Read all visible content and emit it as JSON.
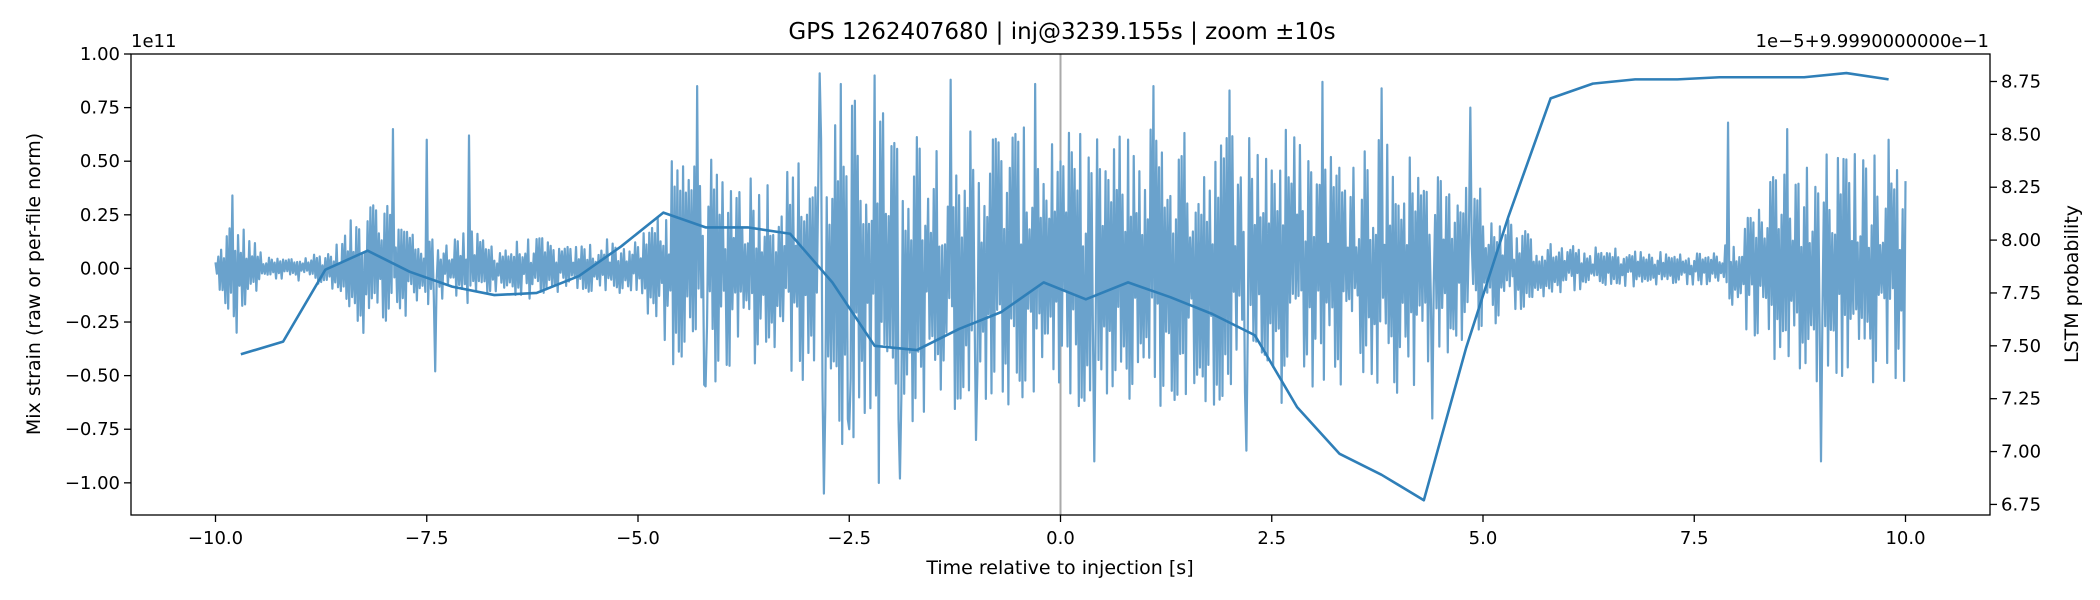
{
  "chart_data": {
    "type": "line",
    "title": "GPS 1262407680 | inj@3239.155s | zoom ±10s",
    "xlabel": "Time relative to injection [s]",
    "ylabel_left": "Mix strain (raw or per-file norm)",
    "ylabel_right": "LSTM probability",
    "left_offset_label": "1e11",
    "right_offset_label": "1e−5+9.9990000000e−1",
    "xlim": [
      -11.0,
      11.0
    ],
    "ylim_left": [
      -1.15,
      1.0
    ],
    "ylim_right": [
      6.7,
      8.88
    ],
    "x_ticks": [
      -10.0,
      -7.5,
      -5.0,
      -2.5,
      0.0,
      2.5,
      5.0,
      7.5,
      10.0
    ],
    "x_tick_labels": [
      "−10.0",
      "−7.5",
      "−5.0",
      "−2.5",
      "0.0",
      "2.5",
      "5.0",
      "7.5",
      "10.0"
    ],
    "y_left_ticks": [
      1.0,
      0.75,
      0.5,
      0.25,
      0.0,
      -0.25,
      -0.5,
      -0.75,
      -1.0
    ],
    "y_left_tick_labels": [
      "1.00",
      "0.75",
      "0.50",
      "0.25",
      "0.00",
      "−0.25",
      "−0.50",
      "−0.75",
      "−1.00"
    ],
    "y_right_ticks": [
      8.75,
      8.5,
      8.25,
      8.0,
      7.75,
      7.5,
      7.25,
      7.0,
      6.75
    ],
    "y_right_tick_labels": [
      "8.75",
      "8.50",
      "8.25",
      "8.00",
      "7.75",
      "7.50",
      "7.25",
      "7.00",
      "6.75"
    ],
    "injection_line_x": 0.0,
    "grid": false,
    "colors": {
      "strain": "#6aa2cc",
      "probability": "#2f7fb8",
      "injection_line": "#aaaaaa",
      "axes": "#000000"
    },
    "strain_envelope": {
      "description_units": "1e11 strain; per-window amplitude envelope of the noisy strain trace",
      "x": [
        -10.0,
        -9.8,
        -9.4,
        -9.0,
        -8.6,
        -8.2,
        -7.8,
        -7.4,
        -7.0,
        -6.6,
        -6.2,
        -5.8,
        -5.4,
        -5.0,
        -4.6,
        -4.2,
        -3.8,
        -3.4,
        -3.0,
        -2.6,
        -2.2,
        -1.8,
        -1.4,
        -1.0,
        -0.6,
        -0.2,
        0.2,
        0.6,
        1.0,
        1.4,
        1.8,
        2.2,
        2.6,
        3.0,
        3.4,
        3.8,
        4.2,
        4.6,
        5.0,
        5.4,
        5.8,
        6.2,
        6.6,
        7.0,
        7.4,
        7.8,
        8.2,
        8.6,
        9.0,
        9.4,
        9.8,
        10.0
      ],
      "amp": [
        0.04,
        0.28,
        0.05,
        0.06,
        0.1,
        0.35,
        0.25,
        0.15,
        0.18,
        0.12,
        0.15,
        0.1,
        0.15,
        0.12,
        0.45,
        0.55,
        0.5,
        0.45,
        0.55,
        0.85,
        0.75,
        0.75,
        0.65,
        0.7,
        0.7,
        0.6,
        0.65,
        0.6,
        0.7,
        0.65,
        0.65,
        0.7,
        0.7,
        0.6,
        0.6,
        0.65,
        0.55,
        0.4,
        0.4,
        0.2,
        0.12,
        0.1,
        0.1,
        0.08,
        0.08,
        0.08,
        0.35,
        0.5,
        0.55,
        0.55,
        0.55,
        0.55
      ],
      "peaks": [
        {
          "x": -9.8,
          "y": 0.34
        },
        {
          "x": -9.75,
          "y": -0.3
        },
        {
          "x": -8.2,
          "y": 0.22
        },
        {
          "x": -7.9,
          "y": 0.65
        },
        {
          "x": -7.9,
          "y": -0.52
        },
        {
          "x": -7.5,
          "y": 0.6
        },
        {
          "x": -7.4,
          "y": -0.48
        },
        {
          "x": -7.0,
          "y": 0.62
        },
        {
          "x": -7.0,
          "y": -0.47
        },
        {
          "x": -4.6,
          "y": 0.5
        },
        {
          "x": -4.3,
          "y": 0.85
        },
        {
          "x": -4.2,
          "y": -0.55
        },
        {
          "x": -2.85,
          "y": 0.91
        },
        {
          "x": -2.8,
          "y": -1.05
        },
        {
          "x": -2.6,
          "y": 0.86
        },
        {
          "x": -2.5,
          "y": -0.75
        },
        {
          "x": -2.2,
          "y": 0.9
        },
        {
          "x": -2.15,
          "y": -1.0
        },
        {
          "x": -1.9,
          "y": -0.98
        },
        {
          "x": -1.3,
          "y": 0.88
        },
        {
          "x": -1.0,
          "y": -0.8
        },
        {
          "x": -0.3,
          "y": 0.86
        },
        {
          "x": 0.0,
          "y": 0.5
        },
        {
          "x": 0.4,
          "y": -0.9
        },
        {
          "x": 1.1,
          "y": 0.85
        },
        {
          "x": 2.0,
          "y": 0.83
        },
        {
          "x": 2.2,
          "y": -0.85
        },
        {
          "x": 3.1,
          "y": 0.87
        },
        {
          "x": 3.8,
          "y": 0.84
        },
        {
          "x": 4.4,
          "y": -0.7
        },
        {
          "x": 4.85,
          "y": 0.75
        },
        {
          "x": 7.9,
          "y": 0.68
        },
        {
          "x": 8.6,
          "y": 0.65
        },
        {
          "x": 9.0,
          "y": -0.9
        },
        {
          "x": 9.8,
          "y": 0.6
        }
      ]
    },
    "probability_series": {
      "x": [
        -9.7,
        -9.2,
        -8.7,
        -8.2,
        -7.7,
        -7.2,
        -6.7,
        -6.2,
        -5.7,
        -5.2,
        -4.7,
        -4.2,
        -3.7,
        -3.2,
        -2.7,
        -2.2,
        -1.7,
        -1.2,
        -0.7,
        -0.2,
        0.3,
        0.8,
        1.3,
        1.8,
        2.3,
        2.8,
        3.3,
        3.8,
        4.3,
        4.8,
        5.3,
        5.8,
        6.3,
        6.8,
        7.3,
        7.8,
        8.3,
        8.8,
        9.3,
        9.8
      ],
      "y": [
        7.46,
        7.52,
        7.86,
        7.95,
        7.85,
        7.78,
        7.74,
        7.75,
        7.83,
        7.97,
        8.13,
        8.06,
        8.06,
        8.03,
        7.8,
        7.5,
        7.48,
        7.58,
        7.66,
        7.8,
        7.72,
        7.8,
        7.73,
        7.65,
        7.55,
        7.21,
        6.99,
        6.89,
        6.77,
        7.49,
        8.11,
        8.67,
        8.74,
        8.76,
        8.76,
        8.77,
        8.77,
        8.77,
        8.79,
        8.76
      ]
    }
  }
}
